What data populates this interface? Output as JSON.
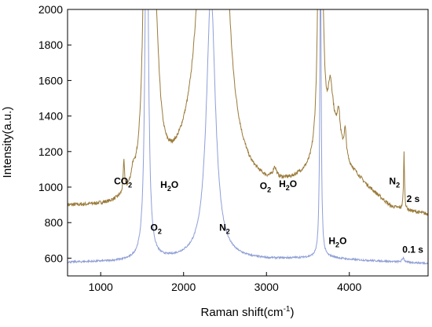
{
  "chart_data": {
    "type": "line",
    "xlabel": "Raman shift(cm",
    "xlabel_sup": "-1",
    "xlabel_end": ")",
    "ylabel": "Intensity(a.u.)",
    "xlim": [
      600,
      4950
    ],
    "ylim": [
      500,
      2000
    ],
    "x_ticks": [
      1000,
      2000,
      3000,
      4000
    ],
    "y_ticks": [
      600,
      800,
      1000,
      1200,
      1400,
      1600,
      1800,
      2000
    ],
    "grid": false,
    "series": [
      {
        "name": "2 s",
        "color": "#9a7a3a",
        "baseline": [
          [
            600,
            880
          ],
          [
            1100,
            870
          ],
          [
            1250,
            875
          ],
          [
            2000,
            1000
          ],
          [
            2600,
            1000
          ],
          [
            2800,
            960
          ],
          [
            3000,
            960
          ],
          [
            3300,
            1000
          ],
          [
            3500,
            1050
          ],
          [
            3640,
            1100
          ],
          [
            3700,
            1200
          ],
          [
            3800,
            1300
          ],
          [
            4000,
            1100
          ],
          [
            4200,
            1000
          ],
          [
            4500,
            880
          ],
          [
            4700,
            860
          ],
          [
            4950,
            840
          ]
        ],
        "peaks": [
          {
            "x": 1280,
            "height": 170,
            "width": 10
          },
          {
            "x": 1388,
            "height": 60,
            "width": 20
          },
          {
            "x": 1555,
            "height": 3000,
            "width": 30
          },
          {
            "x": 1650,
            "height": 900,
            "width": 60
          },
          {
            "x": 2330,
            "height": 3500,
            "width": 110
          },
          {
            "x": 2500,
            "height": 600,
            "width": 60
          },
          {
            "x": 3100,
            "height": 60,
            "width": 25
          },
          {
            "x": 3650,
            "height": 3000,
            "width": 22
          },
          {
            "x": 3770,
            "height": 230,
            "width": 30
          },
          {
            "x": 3870,
            "height": 160,
            "width": 20
          },
          {
            "x": 3950,
            "height": 140,
            "width": 15
          },
          {
            "x": 4660,
            "height": 320,
            "width": 7
          }
        ],
        "noise": 10
      },
      {
        "name": "0.1 s",
        "color": "#8f9fd6",
        "baseline": [
          [
            600,
            575
          ],
          [
            1500,
            580
          ],
          [
            2000,
            590
          ],
          [
            3000,
            590
          ],
          [
            3600,
            600
          ],
          [
            3800,
            600
          ],
          [
            4000,
            590
          ],
          [
            4950,
            570
          ]
        ],
        "peaks": [
          {
            "x": 1555,
            "height": 2400,
            "width": 22
          },
          {
            "x": 2330,
            "height": 1500,
            "width": 65
          },
          {
            "x": 3652,
            "height": 1700,
            "width": 10
          },
          {
            "x": 4650,
            "height": 25,
            "width": 15
          }
        ],
        "noise": 5
      }
    ],
    "annotations": [
      {
        "text": "CO",
        "sub": "2",
        "x": 1160,
        "y": 1015
      },
      {
        "text": "H",
        "sub": "2",
        "tail": "O",
        "x": 1720,
        "y": 995
      },
      {
        "text": "O",
        "sub": "2",
        "x": 1600,
        "y": 755
      },
      {
        "text": "N",
        "sub": "2",
        "x": 2430,
        "y": 755
      },
      {
        "text": "O",
        "sub": "2",
        "x": 2920,
        "y": 990
      },
      {
        "text": "H",
        "sub": "2",
        "tail": "O",
        "x": 3150,
        "y": 1000
      },
      {
        "text": "H",
        "sub": "2",
        "tail": "O",
        "x": 3750,
        "y": 680
      },
      {
        "text": "N",
        "sub": "2",
        "x": 4480,
        "y": 1015
      },
      {
        "text": "2 s",
        "x": 4690,
        "y": 915
      },
      {
        "text": "0.1 s",
        "x": 4640,
        "y": 630
      }
    ]
  }
}
